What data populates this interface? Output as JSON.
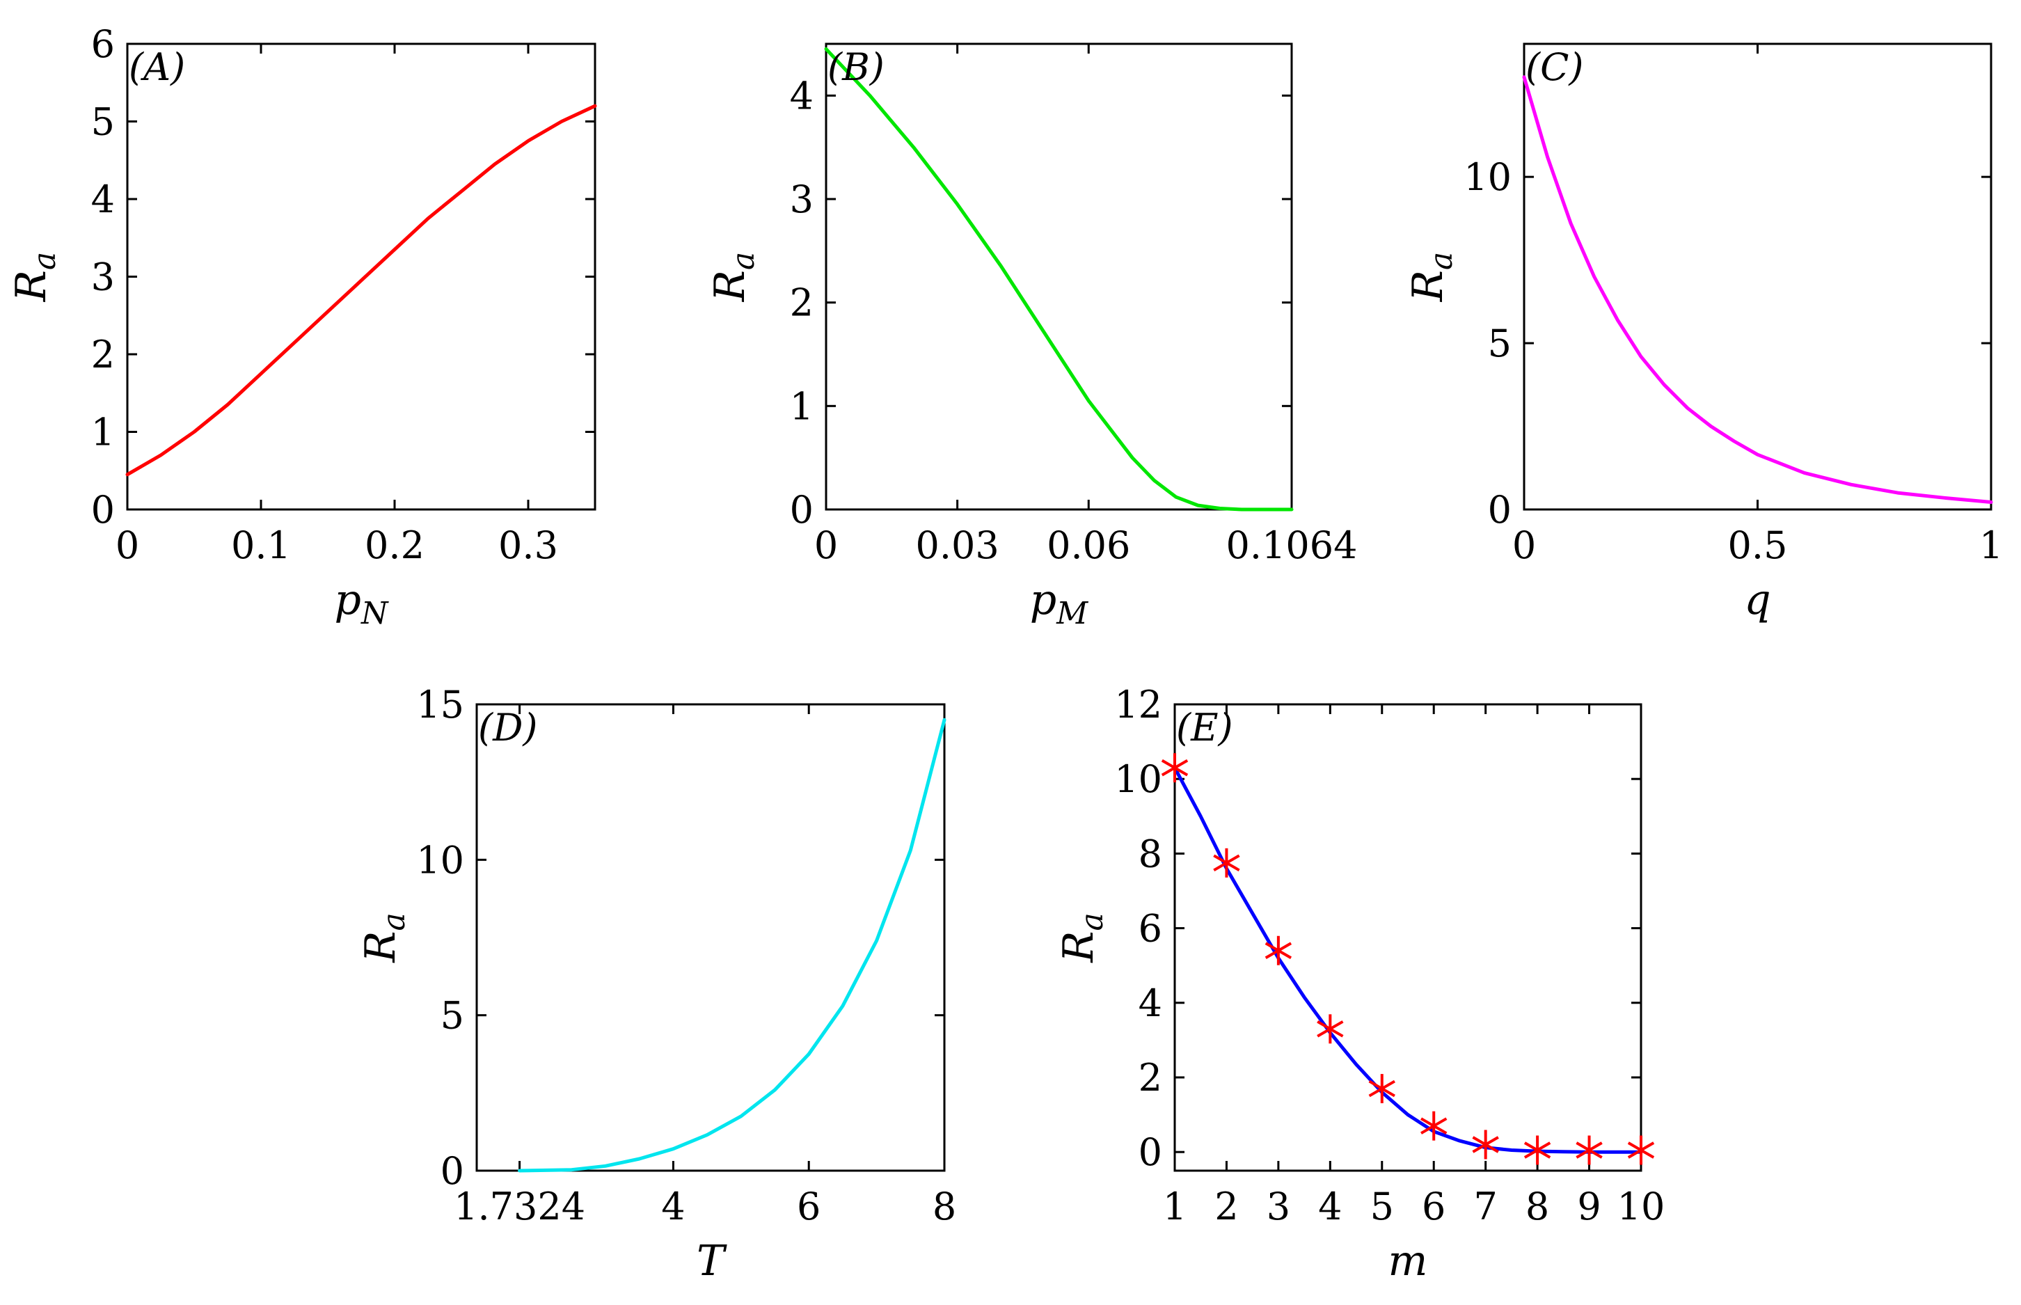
{
  "chart_data": [
    {
      "id": "A",
      "type": "line",
      "panel_label": "(A)",
      "xlabel": "p",
      "xlabel_sub": "N",
      "ylabel": "R",
      "ylabel_sub": "a",
      "xlim": [
        0,
        0.35
      ],
      "ylim": [
        0,
        6
      ],
      "xticks": [
        0,
        0.1,
        0.2,
        0.3
      ],
      "xtick_labels": [
        "0",
        "0.1",
        "0.2",
        "0.3"
      ],
      "yticks": [
        0,
        1,
        2,
        3,
        4,
        5,
        6
      ],
      "ytick_labels": [
        "0",
        "1",
        "2",
        "3",
        "4",
        "5",
        "6"
      ],
      "series": [
        {
          "name": "R_a vs p_N",
          "color": "#ff0000",
          "x": [
            0,
            0.025,
            0.05,
            0.075,
            0.1,
            0.125,
            0.15,
            0.175,
            0.2,
            0.225,
            0.25,
            0.275,
            0.3,
            0.325,
            0.35
          ],
          "y": [
            0.45,
            0.7,
            1.0,
            1.35,
            1.75,
            2.15,
            2.55,
            2.95,
            3.35,
            3.75,
            4.1,
            4.45,
            4.75,
            5.0,
            5.2
          ]
        }
      ]
    },
    {
      "id": "B",
      "type": "line",
      "panel_label": "(B)",
      "xlabel": "p",
      "xlabel_sub": "M",
      "ylabel": "R",
      "ylabel_sub": "a",
      "xlim": [
        0,
        0.1064
      ],
      "ylim": [
        0,
        4.5
      ],
      "xticks": [
        0,
        0.03,
        0.06,
        0.1064
      ],
      "xtick_labels": [
        "0",
        "0.03",
        "0.06",
        "0.1064"
      ],
      "yticks": [
        0,
        1,
        2,
        3,
        4
      ],
      "ytick_labels": [
        "0",
        "1",
        "2",
        "3",
        "4"
      ],
      "series": [
        {
          "name": "R_a vs p_M",
          "color": "#00e600",
          "x": [
            0,
            0.01,
            0.02,
            0.03,
            0.04,
            0.05,
            0.06,
            0.07,
            0.075,
            0.08,
            0.085,
            0.09,
            0.095,
            0.1,
            0.1064
          ],
          "y": [
            4.45,
            4.0,
            3.5,
            2.95,
            2.35,
            1.7,
            1.05,
            0.5,
            0.28,
            0.12,
            0.04,
            0.01,
            0.0,
            0.0,
            0.0
          ]
        }
      ]
    },
    {
      "id": "C",
      "type": "line",
      "panel_label": "(C)",
      "xlabel": "q",
      "xlabel_sub": "",
      "ylabel": "R",
      "ylabel_sub": "a",
      "xlim": [
        0,
        1
      ],
      "ylim": [
        0,
        14
      ],
      "xticks": [
        0,
        0.5,
        1
      ],
      "xtick_labels": [
        "0",
        "0.5",
        "1"
      ],
      "yticks": [
        0,
        5,
        10
      ],
      "ytick_labels": [
        "0",
        "5",
        "10"
      ],
      "series": [
        {
          "name": "R_a vs q",
          "color": "#ff00ff",
          "x": [
            0,
            0.05,
            0.1,
            0.15,
            0.2,
            0.25,
            0.3,
            0.35,
            0.4,
            0.45,
            0.5,
            0.6,
            0.7,
            0.8,
            0.9,
            1.0
          ],
          "y": [
            13.0,
            10.6,
            8.6,
            7.0,
            5.7,
            4.6,
            3.75,
            3.05,
            2.5,
            2.05,
            1.65,
            1.1,
            0.75,
            0.5,
            0.35,
            0.22
          ]
        }
      ]
    },
    {
      "id": "D",
      "type": "line",
      "panel_label": "(D)",
      "xlabel": "T",
      "xlabel_sub": "",
      "ylabel": "R",
      "ylabel_sub": "a",
      "xlim": [
        1.1,
        8
      ],
      "ylim": [
        0,
        15
      ],
      "xticks": [
        1.7324,
        4,
        6,
        8
      ],
      "xtick_labels": [
        "1.7324",
        "4",
        "6",
        "8"
      ],
      "yticks": [
        0,
        5,
        10,
        15
      ],
      "ytick_labels": [
        "0",
        "5",
        "10",
        "15"
      ],
      "series": [
        {
          "name": "R_a vs T",
          "color": "#00e5ee",
          "x": [
            1.7324,
            2.5,
            3.0,
            3.5,
            4.0,
            4.5,
            5.0,
            5.5,
            6.0,
            6.5,
            7.0,
            7.5,
            8.0
          ],
          "y": [
            0.0,
            0.03,
            0.15,
            0.38,
            0.7,
            1.15,
            1.75,
            2.6,
            3.75,
            5.3,
            7.4,
            10.3,
            14.5
          ]
        }
      ]
    },
    {
      "id": "E",
      "type": "line",
      "panel_label": "(E)",
      "xlabel": "m",
      "xlabel_sub": "",
      "ylabel": "R",
      "ylabel_sub": "a",
      "xlim": [
        1,
        10
      ],
      "ylim": [
        -0.5,
        12
      ],
      "xticks": [
        1,
        2,
        3,
        4,
        5,
        6,
        7,
        8,
        9,
        10
      ],
      "xtick_labels": [
        "1",
        "2",
        "3",
        "4",
        "5",
        "6",
        "7",
        "8",
        "9",
        "10"
      ],
      "yticks": [
        0,
        2,
        4,
        6,
        8,
        10,
        12
      ],
      "ytick_labels": [
        "0",
        "2",
        "4",
        "6",
        "8",
        "10",
        "12"
      ],
      "series": [
        {
          "name": "R_a vs m (curve)",
          "color": "#0000ff",
          "x": [
            1,
            1.5,
            2,
            2.5,
            3,
            3.5,
            4,
            4.5,
            5,
            5.5,
            6,
            6.5,
            7,
            7.5,
            8,
            8.5,
            9,
            9.5,
            10
          ],
          "y": [
            10.3,
            9.0,
            7.6,
            6.4,
            5.2,
            4.15,
            3.2,
            2.35,
            1.6,
            1.0,
            0.55,
            0.3,
            0.12,
            0.05,
            0.02,
            0.01,
            0.0,
            0.0,
            0.0
          ]
        },
        {
          "name": "R_a vs m (markers)",
          "color": "#ff0000",
          "marker": "asterisk",
          "x": [
            1,
            2,
            3,
            4,
            5,
            6,
            7,
            8,
            9,
            10
          ],
          "y": [
            10.3,
            7.75,
            5.4,
            3.3,
            1.7,
            0.7,
            0.2,
            0.05,
            0.05,
            0.05
          ]
        }
      ]
    }
  ]
}
